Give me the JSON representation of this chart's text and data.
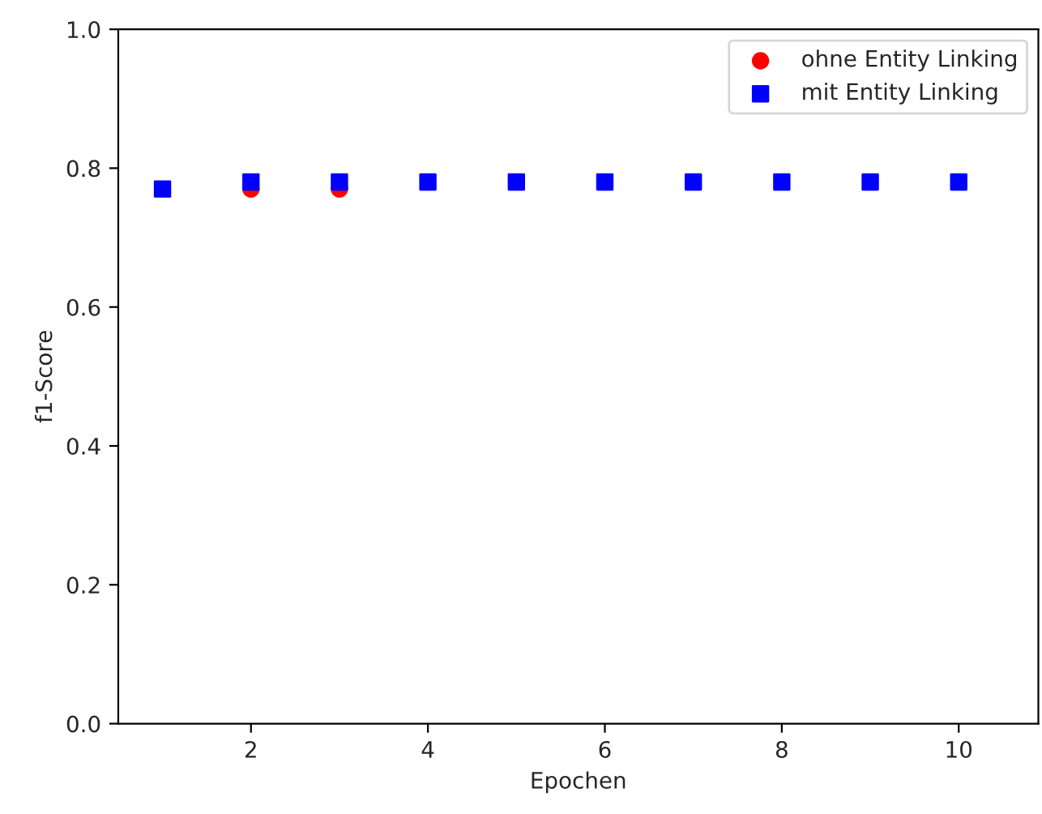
{
  "chart_data": {
    "type": "scatter",
    "xlabel": "Epochen",
    "ylabel": "f1-Score",
    "x": [
      1,
      2,
      3,
      4,
      5,
      6,
      7,
      8,
      9,
      10
    ],
    "series": [
      {
        "name": "ohne Entity Linking",
        "color": "#ff0000",
        "marker": "circle",
        "values": [
          null,
          0.77,
          0.77,
          null,
          null,
          null,
          null,
          null,
          null,
          null
        ]
      },
      {
        "name": "mit Entity Linking",
        "color": "#0000ff",
        "marker": "square",
        "values": [
          0.77,
          0.78,
          0.78,
          0.78,
          0.78,
          0.78,
          0.78,
          0.78,
          0.78,
          0.78
        ]
      }
    ],
    "xlim": [
      0.5,
      10.9
    ],
    "xticks": [
      2,
      4,
      6,
      8,
      10
    ],
    "ylim": [
      0,
      1.0
    ],
    "yticks": [
      {
        "value": 0,
        "label": "0.0"
      },
      0.2,
      0.4,
      0.6,
      0.8,
      {
        "value": 1.0,
        "label": "1.0"
      }
    ],
    "grid": false,
    "legend": "top right"
  }
}
